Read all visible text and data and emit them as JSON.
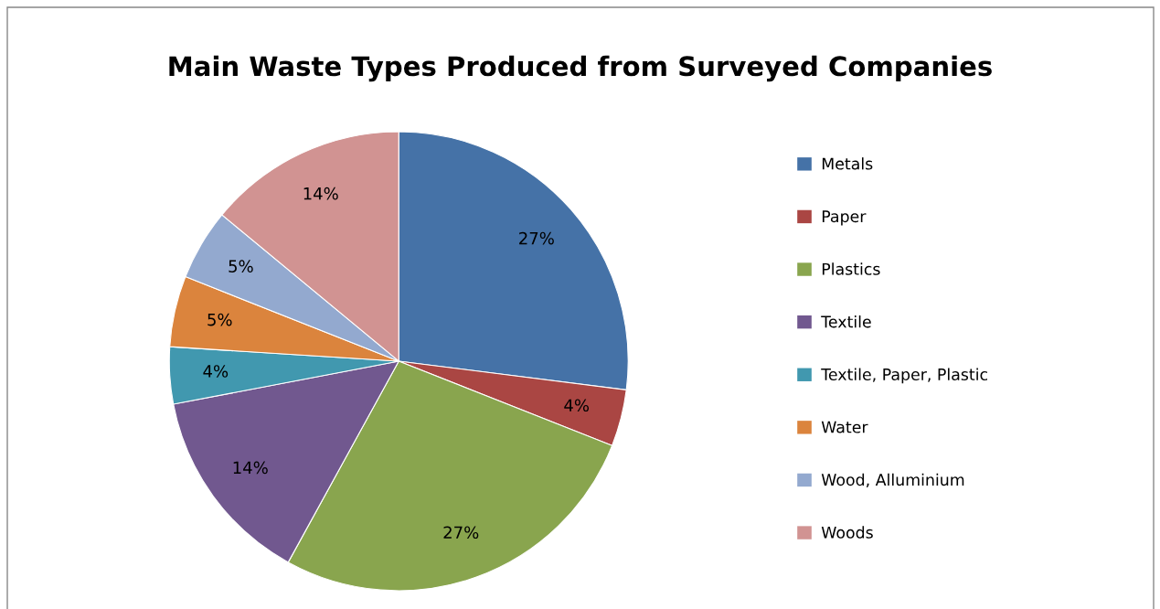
{
  "chart_data": {
    "type": "pie",
    "title": "Main Waste Types Produced from Surveyed Companies",
    "categories": [
      "Metals",
      "Paper",
      "Plastics",
      "Textile",
      "Textile, Paper, Plastic",
      "Water",
      "Wood, Alluminium",
      "Woods"
    ],
    "values": [
      27,
      4,
      27,
      14,
      4,
      5,
      5,
      14
    ],
    "colors": [
      "#4572a7",
      "#aa4643",
      "#89a54e",
      "#71588f",
      "#4198af",
      "#db843d",
      "#93a9cf",
      "#d19392"
    ],
    "value_labels": [
      "27%",
      "4%",
      "27%",
      "14%",
      "4%",
      "5%",
      "5%",
      "14%"
    ],
    "legend": "right"
  }
}
